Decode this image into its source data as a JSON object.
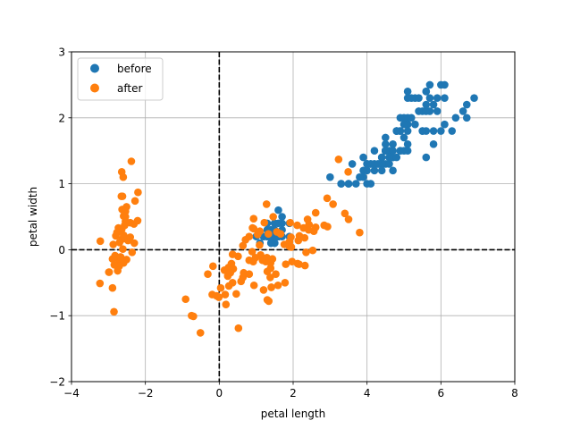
{
  "chart_data": {
    "type": "scatter",
    "title": "",
    "xlabel": "petal length",
    "ylabel": "petal width",
    "xlim": [
      -4,
      8
    ],
    "ylim": [
      -2,
      3
    ],
    "xticks": [
      -4,
      -2,
      0,
      2,
      4,
      6,
      8
    ],
    "yticks": [
      -2,
      -1,
      0,
      1,
      2,
      3
    ],
    "xtick_labels": [
      "−4",
      "−2",
      "0",
      "2",
      "4",
      "6",
      "8"
    ],
    "ytick_labels": [
      "−2",
      "−1",
      "0",
      "1",
      "2",
      "3"
    ],
    "grid": true,
    "reference_lines": {
      "x": 0,
      "y": 0,
      "style": "dashed",
      "color": "#000000"
    },
    "legend_position": "top-left",
    "series": [
      {
        "name": "before",
        "color": "#1f77b4",
        "points": [
          [
            1.4,
            0.2
          ],
          [
            1.4,
            0.2
          ],
          [
            1.3,
            0.2
          ],
          [
            1.5,
            0.2
          ],
          [
            1.4,
            0.2
          ],
          [
            1.7,
            0.4
          ],
          [
            1.4,
            0.3
          ],
          [
            1.5,
            0.2
          ],
          [
            1.4,
            0.2
          ],
          [
            1.5,
            0.1
          ],
          [
            1.5,
            0.2
          ],
          [
            1.6,
            0.2
          ],
          [
            1.4,
            0.1
          ],
          [
            1.1,
            0.1
          ],
          [
            1.2,
            0.2
          ],
          [
            1.5,
            0.4
          ],
          [
            1.3,
            0.4
          ],
          [
            1.4,
            0.3
          ],
          [
            1.7,
            0.3
          ],
          [
            1.5,
            0.3
          ],
          [
            1.7,
            0.2
          ],
          [
            1.5,
            0.4
          ],
          [
            1.0,
            0.2
          ],
          [
            1.7,
            0.5
          ],
          [
            1.9,
            0.2
          ],
          [
            1.6,
            0.2
          ],
          [
            1.6,
            0.4
          ],
          [
            1.5,
            0.2
          ],
          [
            1.4,
            0.2
          ],
          [
            1.6,
            0.2
          ],
          [
            1.6,
            0.2
          ],
          [
            1.5,
            0.4
          ],
          [
            1.5,
            0.1
          ],
          [
            1.4,
            0.2
          ],
          [
            1.5,
            0.2
          ],
          [
            1.2,
            0.2
          ],
          [
            1.3,
            0.2
          ],
          [
            1.4,
            0.1
          ],
          [
            1.3,
            0.2
          ],
          [
            1.5,
            0.2
          ],
          [
            1.3,
            0.3
          ],
          [
            1.3,
            0.3
          ],
          [
            1.3,
            0.2
          ],
          [
            1.6,
            0.6
          ],
          [
            1.9,
            0.4
          ],
          [
            1.4,
            0.3
          ],
          [
            1.6,
            0.2
          ],
          [
            1.4,
            0.2
          ],
          [
            1.5,
            0.2
          ],
          [
            1.4,
            0.2
          ],
          [
            4.7,
            1.4
          ],
          [
            4.5,
            1.5
          ],
          [
            4.9,
            1.5
          ],
          [
            4.0,
            1.3
          ],
          [
            4.6,
            1.5
          ],
          [
            4.5,
            1.3
          ],
          [
            4.7,
            1.6
          ],
          [
            3.3,
            1.0
          ],
          [
            4.6,
            1.3
          ],
          [
            3.9,
            1.4
          ],
          [
            3.5,
            1.0
          ],
          [
            4.2,
            1.5
          ],
          [
            4.0,
            1.0
          ],
          [
            4.7,
            1.4
          ],
          [
            3.6,
            1.3
          ],
          [
            4.4,
            1.4
          ],
          [
            4.5,
            1.5
          ],
          [
            4.1,
            1.0
          ],
          [
            4.5,
            1.5
          ],
          [
            3.9,
            1.1
          ],
          [
            4.8,
            1.8
          ],
          [
            4.0,
            1.3
          ],
          [
            4.9,
            1.5
          ],
          [
            4.7,
            1.2
          ],
          [
            4.3,
            1.3
          ],
          [
            4.4,
            1.4
          ],
          [
            4.8,
            1.4
          ],
          [
            5.0,
            1.7
          ],
          [
            4.5,
            1.5
          ],
          [
            3.5,
            1.0
          ],
          [
            3.8,
            1.1
          ],
          [
            3.7,
            1.0
          ],
          [
            3.9,
            1.2
          ],
          [
            5.1,
            1.6
          ],
          [
            4.5,
            1.5
          ],
          [
            4.5,
            1.6
          ],
          [
            4.7,
            1.5
          ],
          [
            4.4,
            1.3
          ],
          [
            4.1,
            1.3
          ],
          [
            4.0,
            1.3
          ],
          [
            4.4,
            1.2
          ],
          [
            4.6,
            1.4
          ],
          [
            4.0,
            1.2
          ],
          [
            3.3,
            1.0
          ],
          [
            4.2,
            1.3
          ],
          [
            4.2,
            1.2
          ],
          [
            4.2,
            1.3
          ],
          [
            4.3,
            1.3
          ],
          [
            3.0,
            1.1
          ],
          [
            4.1,
            1.3
          ],
          [
            6.0,
            2.5
          ],
          [
            5.1,
            1.9
          ],
          [
            5.9,
            2.1
          ],
          [
            5.6,
            1.8
          ],
          [
            5.8,
            2.2
          ],
          [
            6.6,
            2.1
          ],
          [
            4.5,
            1.7
          ],
          [
            6.3,
            1.8
          ],
          [
            5.8,
            1.8
          ],
          [
            6.1,
            2.5
          ],
          [
            5.1,
            2.0
          ],
          [
            5.3,
            1.9
          ],
          [
            5.5,
            2.1
          ],
          [
            5.0,
            2.0
          ],
          [
            5.1,
            2.4
          ],
          [
            5.3,
            2.3
          ],
          [
            5.5,
            1.8
          ],
          [
            6.7,
            2.2
          ],
          [
            6.9,
            2.3
          ],
          [
            5.0,
            1.5
          ],
          [
            5.7,
            2.3
          ],
          [
            4.9,
            2.0
          ],
          [
            6.7,
            2.0
          ],
          [
            4.9,
            1.8
          ],
          [
            5.7,
            2.1
          ],
          [
            6.0,
            1.8
          ],
          [
            4.8,
            1.8
          ],
          [
            4.9,
            1.8
          ],
          [
            5.6,
            2.1
          ],
          [
            5.8,
            1.6
          ],
          [
            6.1,
            1.9
          ],
          [
            6.4,
            2.0
          ],
          [
            5.6,
            2.2
          ],
          [
            5.1,
            1.5
          ],
          [
            5.6,
            1.4
          ],
          [
            6.1,
            2.3
          ],
          [
            5.6,
            2.4
          ],
          [
            5.5,
            1.8
          ],
          [
            4.8,
            1.8
          ],
          [
            5.4,
            2.1
          ],
          [
            5.6,
            2.4
          ],
          [
            5.1,
            2.3
          ],
          [
            5.1,
            1.9
          ],
          [
            5.9,
            2.3
          ],
          [
            5.7,
            2.5
          ],
          [
            5.2,
            2.3
          ],
          [
            5.0,
            1.9
          ],
          [
            5.2,
            2.0
          ],
          [
            5.4,
            2.3
          ],
          [
            5.1,
            1.8
          ]
        ]
      },
      {
        "name": "after",
        "color": "#ff7f0e",
        "points": [
          [
            -2.68,
            0.32
          ],
          [
            -2.71,
            -0.18
          ],
          [
            -2.89,
            -0.14
          ],
          [
            -2.75,
            -0.32
          ],
          [
            -2.73,
            0.33
          ],
          [
            -2.28,
            0.74
          ],
          [
            -2.82,
            -0.09
          ],
          [
            -2.63,
            0.16
          ],
          [
            -2.89,
            -0.58
          ],
          [
            -2.67,
            -0.11
          ],
          [
            -2.51,
            0.65
          ],
          [
            -2.61,
            0.01
          ],
          [
            -2.79,
            -0.24
          ],
          [
            -3.23,
            -0.51
          ],
          [
            -2.64,
            1.18
          ],
          [
            -2.38,
            1.34
          ],
          [
            -2.62,
            0.81
          ],
          [
            -2.65,
            0.31
          ],
          [
            -2.2,
            0.87
          ],
          [
            -2.59,
            0.51
          ],
          [
            -2.31,
            0.39
          ],
          [
            -2.54,
            0.43
          ],
          [
            -3.22,
            0.13
          ],
          [
            -2.3,
            0.1
          ],
          [
            -2.36,
            -0.04
          ],
          [
            -2.51,
            -0.15
          ],
          [
            -2.47,
            0.14
          ],
          [
            -2.56,
            0.37
          ],
          [
            -2.64,
            0.31
          ],
          [
            -2.63,
            -0.19
          ],
          [
            -2.59,
            -0.2
          ],
          [
            -2.41,
            0.41
          ],
          [
            -2.65,
            0.81
          ],
          [
            -2.6,
            1.1
          ],
          [
            -2.67,
            -0.11
          ],
          [
            -2.87,
            0.08
          ],
          [
            -2.63,
            0.61
          ],
          [
            -2.8,
            0.21
          ],
          [
            -2.98,
            -0.34
          ],
          [
            -2.59,
            0.22
          ],
          [
            -2.77,
            0.26
          ],
          [
            -2.85,
            -0.94
          ],
          [
            -2.99,
            -0.34
          ],
          [
            -2.41,
            0.19
          ],
          [
            -2.21,
            0.44
          ],
          [
            -2.71,
            -0.25
          ],
          [
            -2.54,
            0.5
          ],
          [
            -2.84,
            -0.23
          ],
          [
            -2.54,
            0.58
          ],
          [
            -2.7,
            0.11
          ],
          [
            1.28,
            0.69
          ],
          [
            0.93,
            0.32
          ],
          [
            1.46,
            0.5
          ],
          [
            0.18,
            -0.83
          ],
          [
            1.09,
            0.07
          ],
          [
            0.64,
            -0.42
          ],
          [
            1.1,
            0.28
          ],
          [
            -0.75,
            -1.0
          ],
          [
            1.04,
            0.23
          ],
          [
            -0.01,
            -0.72
          ],
          [
            -0.51,
            -1.26
          ],
          [
            0.51,
            -0.1
          ],
          [
            0.26,
            -0.55
          ],
          [
            0.98,
            -0.12
          ],
          [
            -0.17,
            -0.25
          ],
          [
            0.93,
            0.47
          ],
          [
            0.66,
            -0.35
          ],
          [
            0.23,
            -0.33
          ],
          [
            0.94,
            -0.54
          ],
          [
            0.04,
            -0.58
          ],
          [
            1.12,
            -0.08
          ],
          [
            0.36,
            -0.07
          ],
          [
            1.3,
            -0.33
          ],
          [
            0.92,
            -0.18
          ],
          [
            0.71,
            0.15
          ],
          [
            0.9,
            0.33
          ],
          [
            1.33,
            0.24
          ],
          [
            1.56,
            0.27
          ],
          [
            0.81,
            -0.16
          ],
          [
            -0.31,
            -0.37
          ],
          [
            -0.07,
            -0.7
          ],
          [
            -0.19,
            -0.68
          ],
          [
            0.14,
            -0.31
          ],
          [
            1.38,
            -0.42
          ],
          [
            0.59,
            -0.48
          ],
          [
            0.81,
            0.2
          ],
          [
            1.22,
            0.41
          ],
          [
            0.81,
            -0.37
          ],
          [
            0.25,
            -0.27
          ],
          [
            0.16,
            -0.68
          ],
          [
            0.46,
            -0.67
          ],
          [
            0.89,
            -0.03
          ],
          [
            0.23,
            -0.4
          ],
          [
            -0.7,
            -1.01
          ],
          [
            0.36,
            -0.5
          ],
          [
            0.33,
            -0.21
          ],
          [
            0.38,
            -0.29
          ],
          [
            0.64,
            0.06
          ],
          [
            -0.91,
            -0.75
          ],
          [
            0.3,
            -0.35
          ],
          [
            2.53,
            -0.01
          ],
          [
            1.41,
            -0.57
          ],
          [
            2.61,
            0.34
          ],
          [
            1.97,
            -0.18
          ],
          [
            2.35,
            -0.04
          ],
          [
            3.4,
            0.55
          ],
          [
            0.52,
            -1.19
          ],
          [
            2.93,
            0.35
          ],
          [
            2.32,
            -0.24
          ],
          [
            2.92,
            0.78
          ],
          [
            1.66,
            0.24
          ],
          [
            1.8,
            -0.22
          ],
          [
            2.17,
            0.21
          ],
          [
            1.34,
            -0.78
          ],
          [
            1.59,
            -0.54
          ],
          [
            1.9,
            0.12
          ],
          [
            1.95,
            0.04
          ],
          [
            3.49,
            1.18
          ],
          [
            3.8,
            0.26
          ],
          [
            1.3,
            -0.76
          ],
          [
            2.43,
            0.38
          ],
          [
            1.2,
            -0.61
          ],
          [
            3.5,
            0.46
          ],
          [
            1.39,
            -0.2
          ],
          [
            2.28,
            0.33
          ],
          [
            2.61,
            0.56
          ],
          [
            1.26,
            -0.18
          ],
          [
            1.29,
            -0.12
          ],
          [
            2.12,
            -0.21
          ],
          [
            2.39,
            0.46
          ],
          [
            2.84,
            0.37
          ],
          [
            3.23,
            1.37
          ],
          [
            2.16,
            -0.22
          ],
          [
            1.44,
            -0.14
          ],
          [
            1.78,
            -0.5
          ],
          [
            3.08,
            0.69
          ],
          [
            2.14,
            0.14
          ],
          [
            1.9,
            0.05
          ],
          [
            1.17,
            -0.16
          ],
          [
            2.11,
            0.37
          ],
          [
            2.31,
            0.18
          ],
          [
            1.92,
            0.41
          ],
          [
            1.41,
            -0.57
          ],
          [
            2.56,
            0.28
          ],
          [
            2.42,
            0.3
          ],
          [
            1.94,
            0.19
          ],
          [
            1.53,
            -0.37
          ],
          [
            1.76,
            0.08
          ],
          [
            1.9,
            0.12
          ],
          [
            1.39,
            -0.28
          ]
        ]
      }
    ]
  }
}
